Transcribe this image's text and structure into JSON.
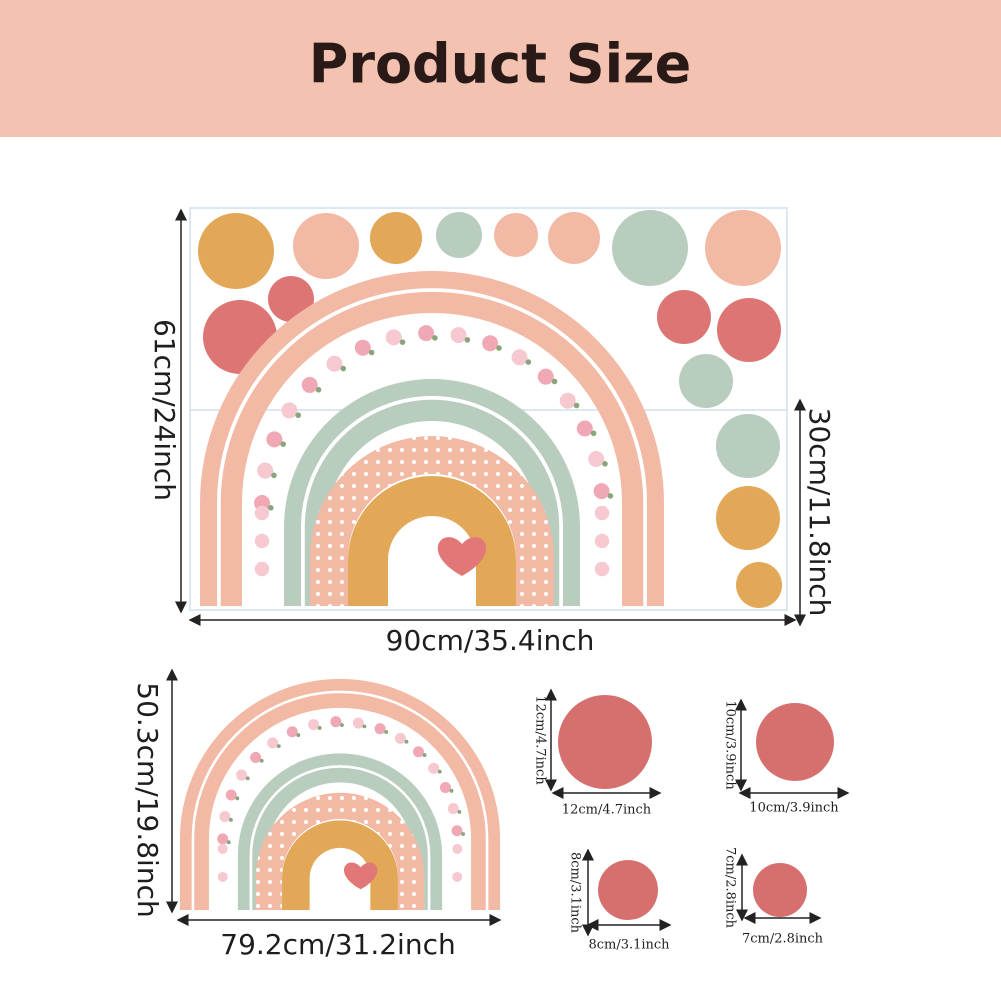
{
  "header": {
    "title": "Product Size"
  },
  "sheet": {
    "height_label": "61cm/24inch",
    "half_height_label": "30cm/11.8inch",
    "width_label": "90cm/35.4inch"
  },
  "assembled": {
    "height_label": "50.3cm/19.8inch",
    "width_label": "79.2cm/31.2inch"
  },
  "circles": [
    {
      "size_label": "12cm/4.7inch"
    },
    {
      "size_label": "10cm/3.9inch"
    },
    {
      "size_label": "8cm/3.1inch"
    },
    {
      "size_label": "7cm/2.8inch"
    }
  ]
}
